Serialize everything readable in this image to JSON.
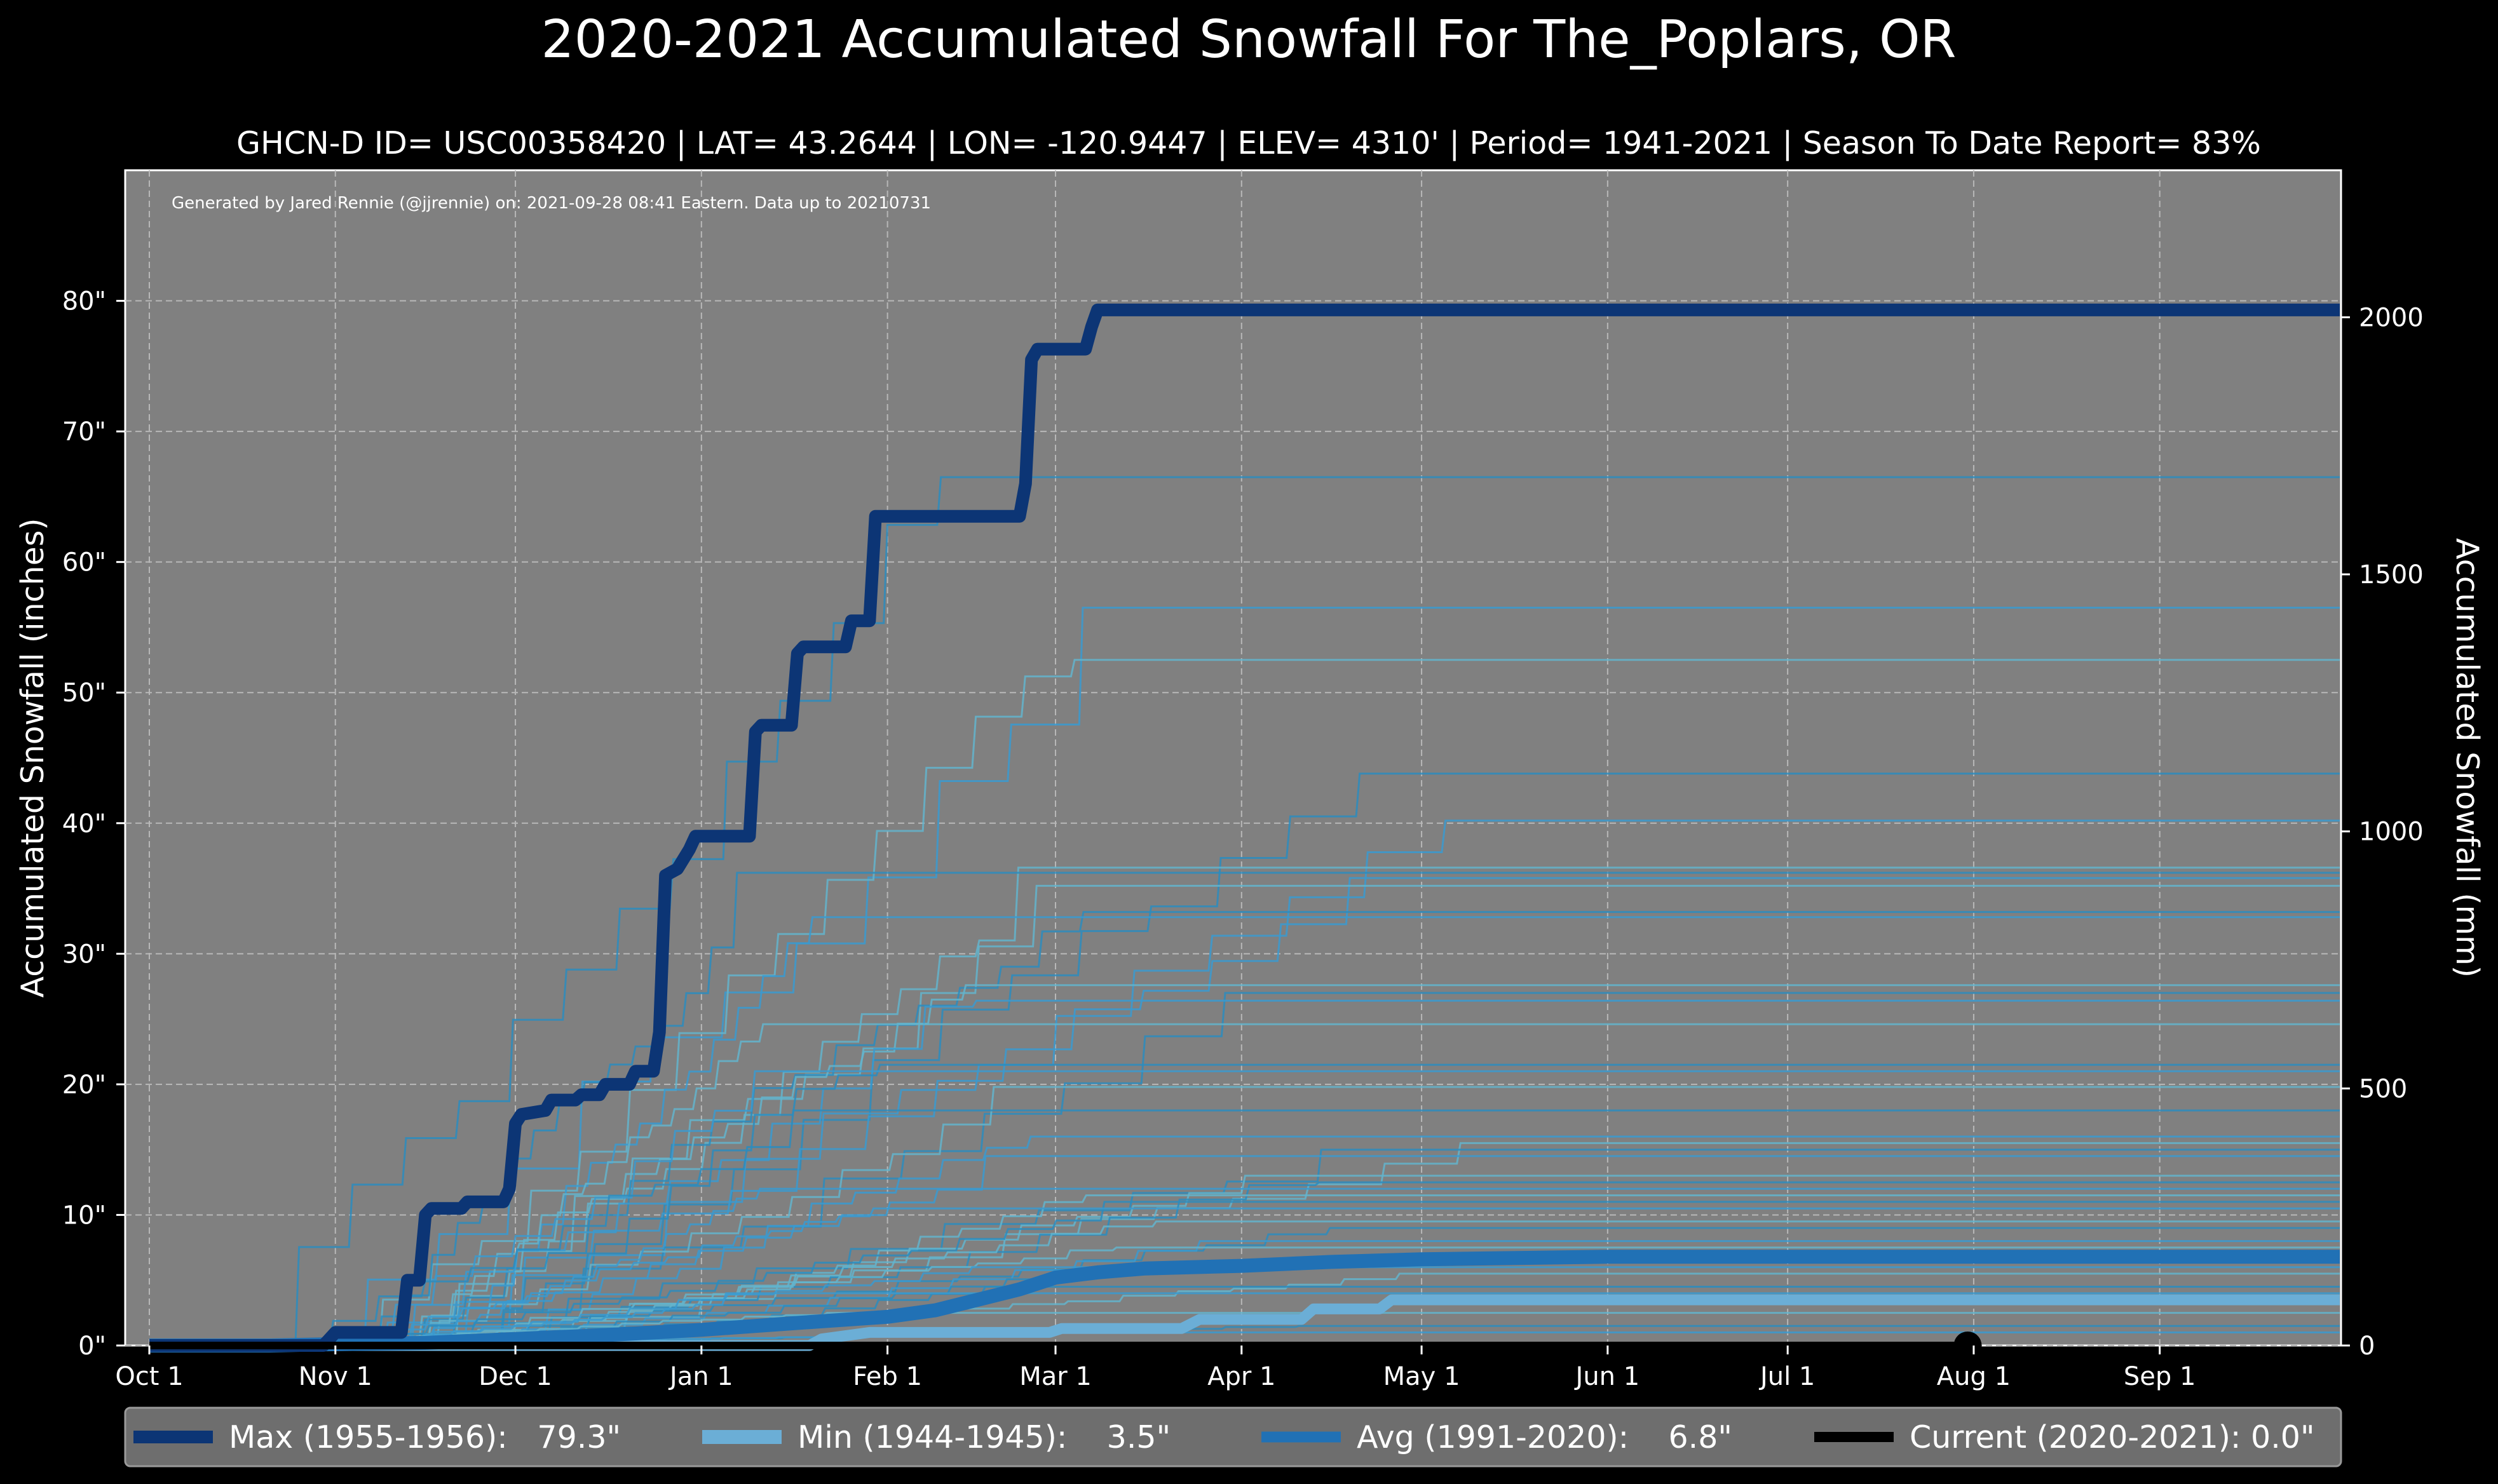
{
  "chart_data": {
    "type": "line",
    "title": "2020-2021 Accumulated Snowfall For The_Poplars, OR",
    "subtitle": "GHCN-D ID= USC00358420 | LAT= 43.2644 | LON= -120.9447 | ELEV= 4310' | Period= 1941-2021 | Season To Date Report= 83%",
    "credit": "Generated by Jared Rennie (@jjrennie) on: 2021-09-28 08:41 Eastern. Data up to 20210731",
    "ylabel": "Accumulated Snowfall (inches)",
    "ylabel_right": "Accumulated Snowfall (mm)",
    "xlabel": "",
    "x_unit": "day of season starting Oct 1",
    "xlim": [
      0,
      365
    ],
    "ylim": [
      0,
      90
    ],
    "ylim_right_mm": [
      0,
      2286
    ],
    "grid": true,
    "background": "#808080",
    "legend_position": "below",
    "x_ticks": [
      {
        "label": "Oct 1",
        "day": 0
      },
      {
        "label": "Nov 1",
        "day": 31
      },
      {
        "label": "Dec 1",
        "day": 61
      },
      {
        "label": "Jan 1",
        "day": 92
      },
      {
        "label": "Feb 1",
        "day": 123
      },
      {
        "label": "Mar 1",
        "day": 151
      },
      {
        "label": "Apr 1",
        "day": 182
      },
      {
        "label": "May 1",
        "day": 212
      },
      {
        "label": "Jun 1",
        "day": 243
      },
      {
        "label": "Jul 1",
        "day": 273
      },
      {
        "label": "Aug 1",
        "day": 304
      },
      {
        "label": "Sep 1",
        "day": 335
      }
    ],
    "y_ticks": [
      {
        "label": "0\"",
        "value": 0
      },
      {
        "label": "10\"",
        "value": 10
      },
      {
        "label": "20\"",
        "value": 20
      },
      {
        "label": "30\"",
        "value": 30
      },
      {
        "label": "40\"",
        "value": 40
      },
      {
        "label": "50\"",
        "value": 50
      },
      {
        "label": "60\"",
        "value": 60
      },
      {
        "label": "70\"",
        "value": 70
      },
      {
        "label": "80\"",
        "value": 80
      }
    ],
    "y_ticks_right": [
      {
        "label": "0",
        "value": 0
      },
      {
        "label": "500",
        "value": 500
      },
      {
        "label": "1000",
        "value": 1000
      },
      {
        "label": "1500",
        "value": 1500
      },
      {
        "label": "2000",
        "value": 2000
      }
    ],
    "series": [
      {
        "name": "Max (1955-1956)",
        "legend_label": "Max (1955-1956):   79.3\"",
        "color": "#0c3575",
        "points": [
          [
            0,
            0
          ],
          [
            29,
            0
          ],
          [
            31,
            1
          ],
          [
            42,
            1
          ],
          [
            43,
            5
          ],
          [
            45,
            5
          ],
          [
            46,
            10
          ],
          [
            47,
            10.5
          ],
          [
            52,
            10.5
          ],
          [
            53,
            11
          ],
          [
            59,
            11
          ],
          [
            60,
            12
          ],
          [
            61,
            17
          ],
          [
            62,
            17.7
          ],
          [
            66,
            18
          ],
          [
            67,
            18.8
          ],
          [
            71,
            18.8
          ],
          [
            72,
            19.2
          ],
          [
            75,
            19.2
          ],
          [
            76,
            20
          ],
          [
            80,
            20
          ],
          [
            81,
            21
          ],
          [
            84,
            21
          ],
          [
            85,
            24
          ],
          [
            86,
            36
          ],
          [
            88,
            36.5
          ],
          [
            90,
            38
          ],
          [
            91,
            39
          ],
          [
            100,
            39
          ],
          [
            101,
            47
          ],
          [
            102,
            47.5
          ],
          [
            107,
            47.5
          ],
          [
            108,
            53
          ],
          [
            109,
            53.5
          ],
          [
            116,
            53.5
          ],
          [
            117,
            55.5
          ],
          [
            120,
            55.5
          ],
          [
            121,
            63.5
          ],
          [
            145,
            63.5
          ],
          [
            146,
            66
          ],
          [
            147,
            75.5
          ],
          [
            148,
            76.3
          ],
          [
            156,
            76.3
          ],
          [
            157,
            78
          ],
          [
            158,
            79.3
          ],
          [
            365,
            79.3
          ]
        ]
      },
      {
        "name": "Min (1944-1945)",
        "legend_label": "Min (1944-1945):    3.5\"",
        "color": "#6baed6",
        "points": [
          [
            0,
            0
          ],
          [
            110,
            0
          ],
          [
            112,
            0.5
          ],
          [
            120,
            1
          ],
          [
            150,
            1
          ],
          [
            152,
            1.3
          ],
          [
            172,
            1.3
          ],
          [
            175,
            2
          ],
          [
            192,
            2
          ],
          [
            194,
            2.8
          ],
          [
            205,
            2.8
          ],
          [
            207,
            3.5
          ],
          [
            365,
            3.5
          ]
        ]
      },
      {
        "name": "Avg (1991-2020)",
        "legend_label": "Avg (1991-2020):    6.8\"",
        "color": "#2171b5",
        "points": [
          [
            0,
            0
          ],
          [
            20,
            0
          ],
          [
            31,
            0.1
          ],
          [
            46,
            0.2
          ],
          [
            61,
            0.5
          ],
          [
            76,
            0.8
          ],
          [
            92,
            1.2
          ],
          [
            107,
            1.7
          ],
          [
            123,
            2.2
          ],
          [
            131,
            2.7
          ],
          [
            138,
            3.5
          ],
          [
            145,
            4.3
          ],
          [
            151,
            5.2
          ],
          [
            158,
            5.6
          ],
          [
            166,
            5.9
          ],
          [
            182,
            6.1
          ],
          [
            197,
            6.4
          ],
          [
            212,
            6.6
          ],
          [
            243,
            6.8
          ],
          [
            365,
            6.8
          ]
        ]
      },
      {
        "name": "Current (2020-2021)",
        "legend_label": "Current (2020-2021): 0.0\"",
        "color": "#000000",
        "points": [
          [
            0,
            0
          ],
          [
            303,
            0
          ]
        ],
        "end_marker": [
          303,
          0
        ]
      }
    ]
  }
}
